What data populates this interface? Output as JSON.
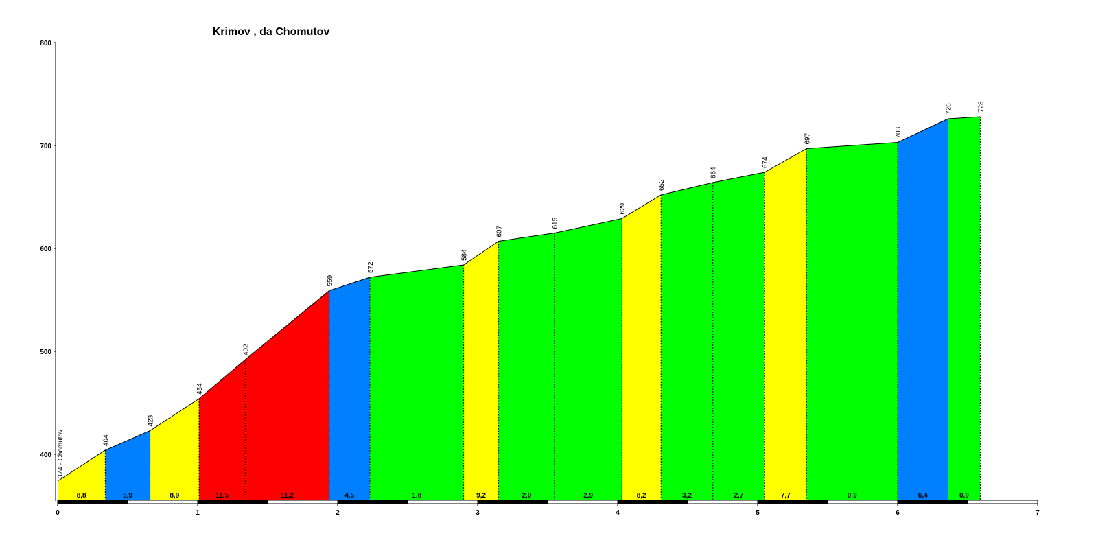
{
  "chart_data": {
    "type": "area",
    "title": "Krimov , da Chomutov",
    "xlabel": "",
    "ylabel": "",
    "xlim": [
      0,
      7
    ],
    "ylim": [
      350,
      800
    ],
    "x_ticks": [
      "0",
      "1",
      "2",
      "3",
      "4",
      "5",
      "6",
      "7"
    ],
    "y_ticks": [
      "400",
      "500",
      "600",
      "700",
      "800"
    ],
    "start_label": "374 - Chomutov",
    "points": [
      {
        "x": 0.0,
        "y": 374,
        "label": ""
      },
      {
        "x": 0.34,
        "y": 404,
        "label": "404"
      },
      {
        "x": 0.66,
        "y": 423,
        "label": "423"
      },
      {
        "x": 1.01,
        "y": 454,
        "label": "454"
      },
      {
        "x": 1.34,
        "y": 492,
        "label": "492"
      },
      {
        "x": 1.94,
        "y": 559,
        "label": "559"
      },
      {
        "x": 2.23,
        "y": 572,
        "label": "572"
      },
      {
        "x": 2.9,
        "y": 584,
        "label": "584"
      },
      {
        "x": 3.15,
        "y": 607,
        "label": "607"
      },
      {
        "x": 3.55,
        "y": 615,
        "label": "615"
      },
      {
        "x": 4.03,
        "y": 629,
        "label": "629"
      },
      {
        "x": 4.31,
        "y": 652,
        "label": "652"
      },
      {
        "x": 4.68,
        "y": 664,
        "label": "664"
      },
      {
        "x": 5.05,
        "y": 674,
        "label": "674"
      },
      {
        "x": 5.35,
        "y": 697,
        "label": "697"
      },
      {
        "x": 6.0,
        "y": 703,
        "label": "703"
      },
      {
        "x": 6.36,
        "y": 726,
        "label": "726"
      },
      {
        "x": 6.59,
        "y": 728,
        "label": "728"
      }
    ],
    "segments": [
      {
        "gradient": "8,8",
        "color": "#ffff00"
      },
      {
        "gradient": "5,9",
        "color": "#0080ff"
      },
      {
        "gradient": "8,9",
        "color": "#ffff00"
      },
      {
        "gradient": "11,5",
        "color": "#ff0000"
      },
      {
        "gradient": "11,2",
        "color": "#ff0000"
      },
      {
        "gradient": "4,5",
        "color": "#0080ff"
      },
      {
        "gradient": "1,8",
        "color": "#00ff00"
      },
      {
        "gradient": "9,2",
        "color": "#ffff00"
      },
      {
        "gradient": "2,0",
        "color": "#00ff00"
      },
      {
        "gradient": "2,9",
        "color": "#00ff00"
      },
      {
        "gradient": "8,2",
        "color": "#ffff00"
      },
      {
        "gradient": "3,2",
        "color": "#00ff00"
      },
      {
        "gradient": "2,7",
        "color": "#00ff00"
      },
      {
        "gradient": "7,7",
        "color": "#ffff00"
      },
      {
        "gradient": "0,9",
        "color": "#00ff00"
      },
      {
        "gradient": "6,4",
        "color": "#0080ff"
      },
      {
        "gradient": "0,9",
        "color": "#00ff00"
      }
    ]
  }
}
